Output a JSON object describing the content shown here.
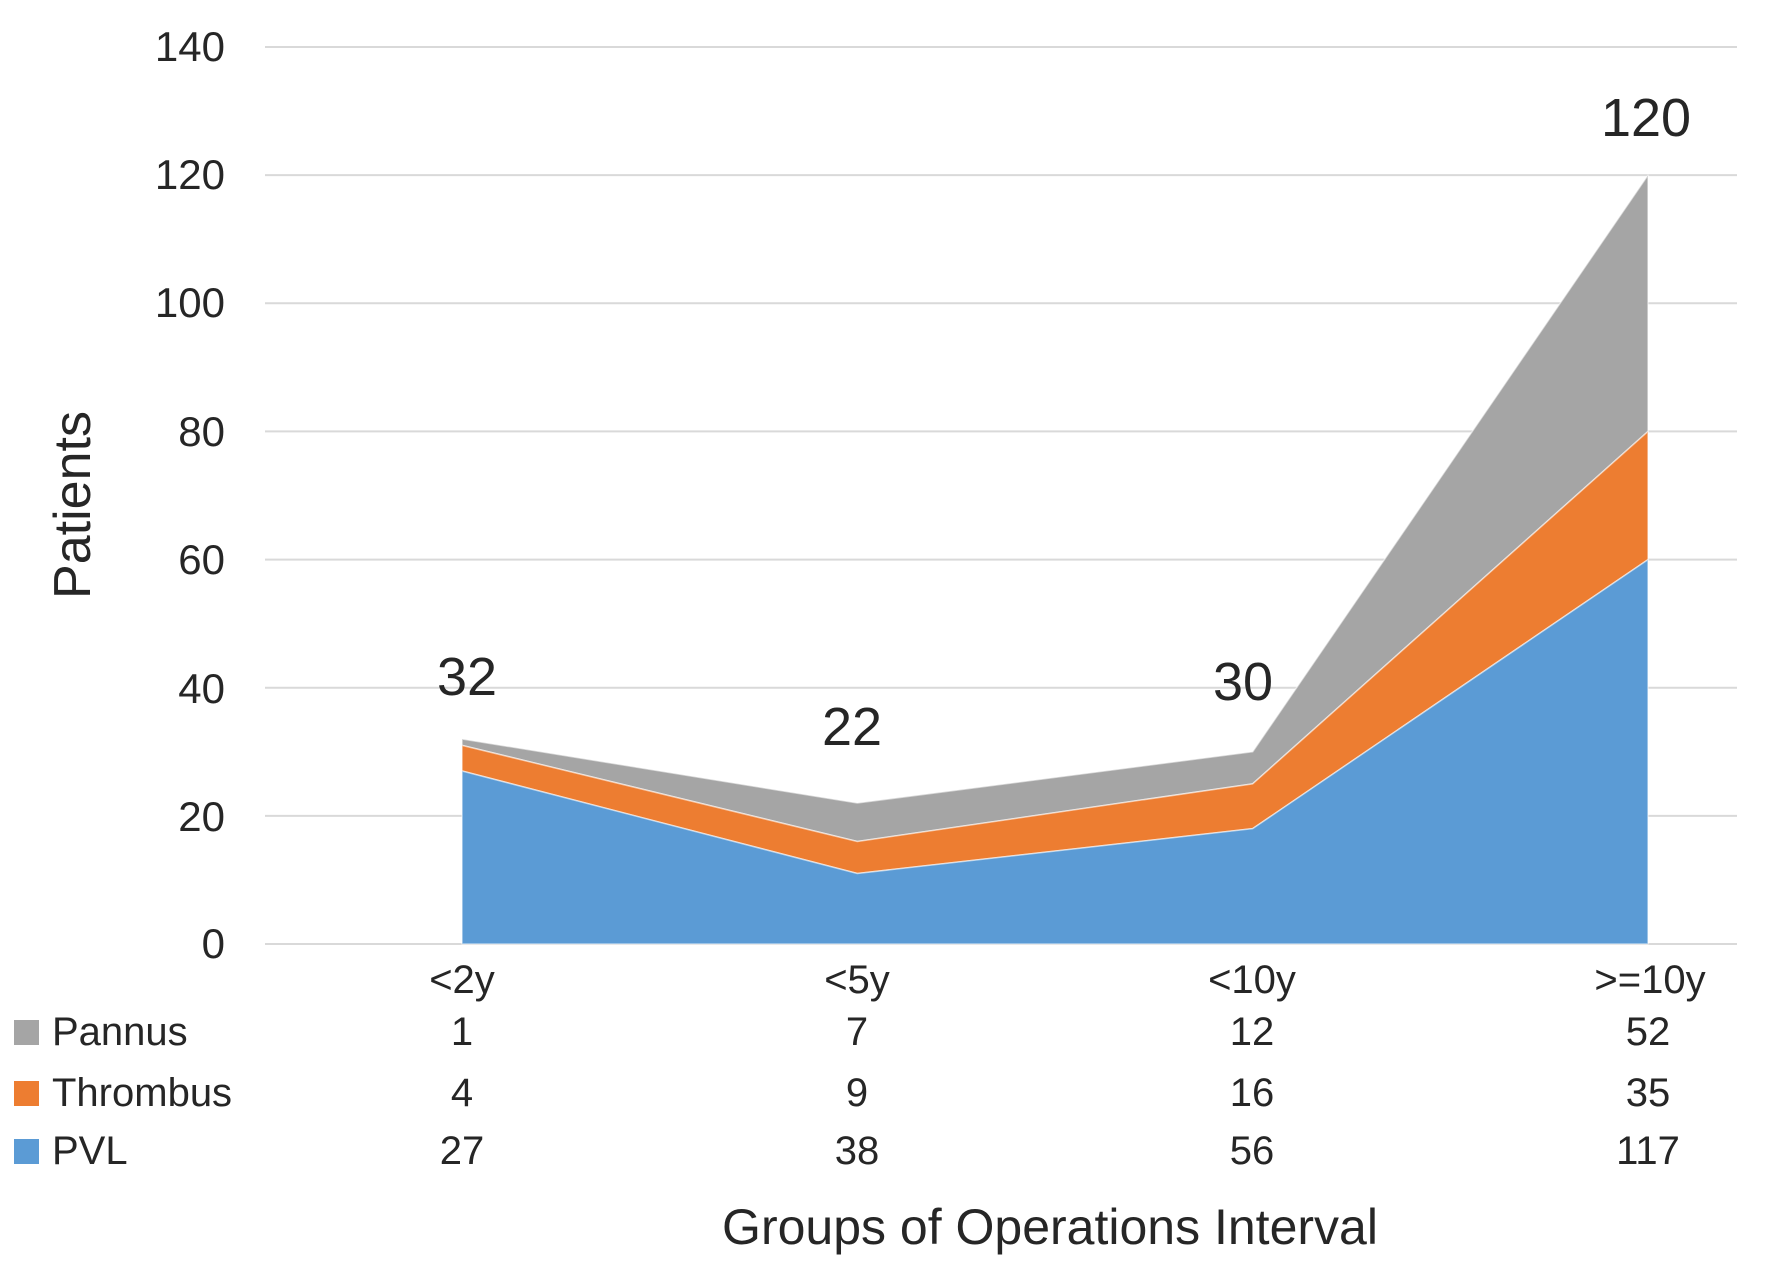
{
  "chart_data": {
    "type": "area",
    "stacked": true,
    "title": "",
    "xlabel": "Groups of Operations Interval",
    "ylabel": "Patients",
    "categories": [
      "<2y",
      "<5y",
      "<10y",
      ">=10y"
    ],
    "y_tick_labels": [
      "140",
      "120",
      "100",
      "80",
      "60",
      "40",
      "20",
      "0"
    ],
    "ylim": [
      0,
      140
    ],
    "y_tick_step": 20,
    "grid": true,
    "legend_position": "left-table",
    "series": [
      {
        "name": "Pannus",
        "color": "#A5A5A5",
        "table_values": [
          "1",
          "7",
          "12",
          "52"
        ]
      },
      {
        "name": "Thrombus",
        "color": "#ED7D31",
        "table_values": [
          "4",
          "9",
          "16",
          "35"
        ]
      },
      {
        "name": "PVL",
        "color": "#5B9BD5",
        "table_values": [
          "27",
          "38",
          "56",
          "117"
        ]
      }
    ],
    "total_labels": [
      "32",
      "22",
      "30",
      "120"
    ],
    "plotted_stack_tops": {
      "pvl": [
        27,
        11,
        18,
        60
      ],
      "thrombus": [
        31,
        16,
        25,
        80
      ],
      "pannus": [
        32,
        22,
        30,
        120
      ]
    },
    "colors": {
      "gridline": "#D9D9D9",
      "text": "#262626"
    }
  }
}
